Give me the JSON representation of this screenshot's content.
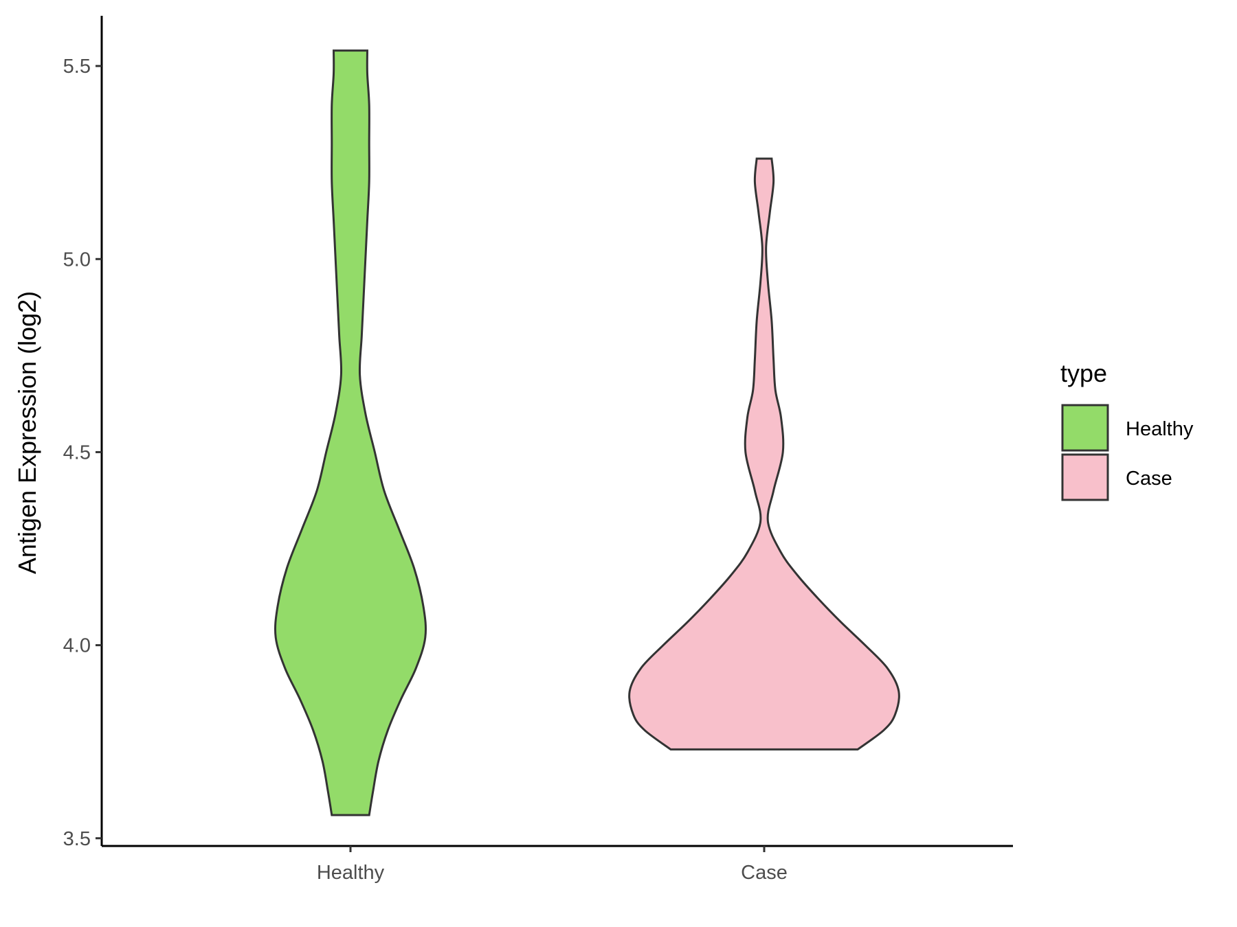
{
  "chart_data": {
    "type": "violin",
    "title": "",
    "xlabel": "",
    "ylabel": "Antigen Expression (log2)",
    "categories": [
      "Healthy",
      "Case"
    ],
    "ylim": [
      3.48,
      5.63
    ],
    "yticks": [
      3.5,
      4.0,
      4.5,
      5.0,
      5.5
    ],
    "ytick_labels": [
      "3.5",
      "4.0",
      "4.5",
      "5.0",
      "5.5"
    ],
    "grid": false,
    "legend": {
      "title": "type",
      "position": "right",
      "entries": [
        {
          "label": "Healthy",
          "color": "#93db69"
        },
        {
          "label": "Case",
          "color": "#f8c0cb"
        }
      ]
    },
    "series": [
      {
        "category": "Healthy",
        "color": "#93db69",
        "y_min": 3.56,
        "y_max": 5.54,
        "density_profile": [
          [
            3.56,
            0.1
          ],
          [
            3.62,
            0.12
          ],
          [
            3.7,
            0.15
          ],
          [
            3.78,
            0.2
          ],
          [
            3.86,
            0.27
          ],
          [
            3.94,
            0.35
          ],
          [
            4.02,
            0.4
          ],
          [
            4.1,
            0.39
          ],
          [
            4.2,
            0.34
          ],
          [
            4.3,
            0.26
          ],
          [
            4.4,
            0.18
          ],
          [
            4.5,
            0.13
          ],
          [
            4.6,
            0.08
          ],
          [
            4.7,
            0.05
          ],
          [
            4.8,
            0.06
          ],
          [
            4.9,
            0.07
          ],
          [
            5.0,
            0.08
          ],
          [
            5.1,
            0.09
          ],
          [
            5.2,
            0.1
          ],
          [
            5.3,
            0.1
          ],
          [
            5.4,
            0.1
          ],
          [
            5.48,
            0.09
          ],
          [
            5.54,
            0.09
          ]
        ]
      },
      {
        "category": "Case",
        "color": "#f8c0cb",
        "y_min": 3.73,
        "y_max": 5.26,
        "density_profile": [
          [
            3.73,
            0.5
          ],
          [
            3.78,
            0.64
          ],
          [
            3.82,
            0.7
          ],
          [
            3.88,
            0.72
          ],
          [
            3.94,
            0.66
          ],
          [
            4.0,
            0.54
          ],
          [
            4.06,
            0.41
          ],
          [
            4.12,
            0.29
          ],
          [
            4.18,
            0.18
          ],
          [
            4.24,
            0.09
          ],
          [
            4.32,
            0.02
          ],
          [
            4.4,
            0.05
          ],
          [
            4.5,
            0.1
          ],
          [
            4.59,
            0.09
          ],
          [
            4.66,
            0.06
          ],
          [
            4.74,
            0.05
          ],
          [
            4.84,
            0.04
          ],
          [
            4.94,
            0.02
          ],
          [
            5.03,
            0.01
          ],
          [
            5.12,
            0.03
          ],
          [
            5.2,
            0.05
          ],
          [
            5.26,
            0.04
          ]
        ]
      }
    ]
  }
}
